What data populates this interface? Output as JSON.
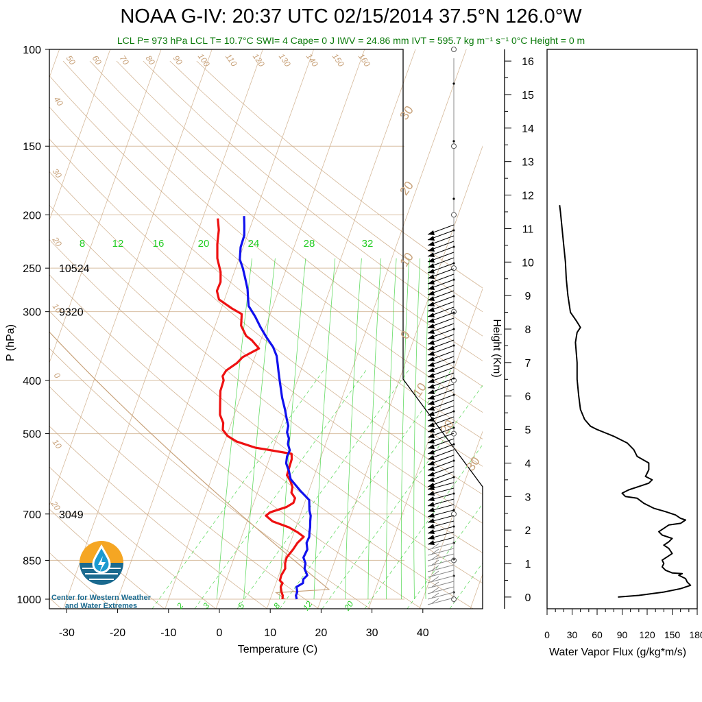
{
  "title": "NOAA G-IV: 20:37 UTC 02/15/2014  37.5°N 126.0°W",
  "subtitle": "LCL P= 973 hPa  LCL T= 10.7°C  SWI= 4  Cape= 0 J  IWV = 24.86 mm  IVT = 595.7 kg m⁻¹ s⁻¹  0°C Height = 0 m",
  "logo": {
    "caption_line1": "Center for Western Weather",
    "caption_line2": "and Water Extremes",
    "icon": "cw3e-water-drop-logo"
  },
  "colors": {
    "temperature": "#ee1111",
    "dewpoint": "#1111ee",
    "mixing_ratio": "#22cc22",
    "adiabats": "#c8a27a",
    "flux": "#000000"
  },
  "chart_data": [
    {
      "type": "line",
      "name": "skew-t-sounding",
      "xlabel": "Temperature (C)",
      "ylabel": "P (hPa)",
      "x_ticks": [
        -30,
        -20,
        -10,
        0,
        10,
        20,
        30,
        40
      ],
      "y_ticks": [
        100,
        150,
        200,
        250,
        300,
        400,
        500,
        700,
        850,
        1000
      ],
      "y_scale": "log",
      "xlim": [
        -34,
        40
      ],
      "ylim": [
        1000,
        100
      ],
      "height_labels": [
        {
          "p": 250,
          "text": "10524"
        },
        {
          "p": 300,
          "text": "9320"
        },
        {
          "p": 700,
          "text": "3049"
        }
      ],
      "mixing_ratio_labels_top": [
        "8",
        "12",
        "16",
        "20",
        "24",
        "28",
        "32"
      ],
      "mixing_ratio_labels_bottom": [
        "2",
        "3",
        "5",
        "8",
        "12",
        "20"
      ],
      "dry_adiabat_labels": [
        "50",
        "60",
        "70",
        "80",
        "90",
        "100",
        "110",
        "120",
        "130",
        "140",
        "150",
        "160"
      ],
      "isotherm_labels_left": [
        "40",
        "30",
        "20",
        "10",
        "0",
        "10",
        "20"
      ],
      "isotherm_labels_right": [
        "30",
        "20",
        "10",
        "0",
        "10",
        "20",
        "30"
      ],
      "series": [
        {
          "name": "Temperature",
          "points": [
            [
              12.4,
              1000
            ],
            [
              12.2,
              985
            ],
            [
              11.7,
              970
            ],
            [
              11.2,
              950
            ],
            [
              11.3,
              935
            ],
            [
              10.6,
              925
            ],
            [
              10.5,
              905
            ],
            [
              10.8,
              880
            ],
            [
              10.4,
              860
            ],
            [
              10.3,
              840
            ],
            [
              11.0,
              812
            ],
            [
              11.4,
              790
            ],
            [
              12.2,
              770
            ],
            [
              10.6,
              755
            ],
            [
              8.6,
              740
            ],
            [
              5.0,
              722
            ],
            [
              3.3,
              705
            ],
            [
              3.9,
              695
            ],
            [
              6.7,
              680
            ],
            [
              7.8,
              668
            ],
            [
              7.8,
              655
            ],
            [
              6.7,
              640
            ],
            [
              6.5,
              625
            ],
            [
              5.7,
              610
            ],
            [
              4.6,
              595
            ],
            [
              4.5,
              575
            ],
            [
              4.4,
              556
            ],
            [
              4.0,
              544
            ],
            [
              -3.6,
              530
            ],
            [
              -7.6,
              517
            ],
            [
              -9.8,
              505
            ],
            [
              -11.2,
              492
            ],
            [
              -11.6,
              478
            ],
            [
              -12.8,
              462
            ],
            [
              -13.6,
              440
            ],
            [
              -14.4,
              418
            ],
            [
              -14.5,
              400
            ],
            [
              -15.0,
              393
            ],
            [
              -14.7,
              384
            ],
            [
              -13.1,
              372
            ],
            [
              -12.4,
              363
            ],
            [
              -9.8,
              350
            ],
            [
              -11.8,
              338
            ],
            [
              -13.2,
              332
            ],
            [
              -14.9,
              318
            ],
            [
              -15.6,
              303
            ],
            [
              -17.9,
              296
            ],
            [
              -21.1,
              285
            ],
            [
              -22.1,
              275
            ],
            [
              -22.0,
              265
            ],
            [
              -22.7,
              254
            ],
            [
              -24.3,
              240
            ],
            [
              -25.3,
              226
            ],
            [
              -26.0,
              213
            ],
            [
              -27.0,
              203
            ]
          ]
        },
        {
          "name": "Dewpoint",
          "points": [
            [
              15.2,
              1000
            ],
            [
              14.8,
              985
            ],
            [
              14.8,
              970
            ],
            [
              14.3,
              950
            ],
            [
              15.3,
              935
            ],
            [
              15.1,
              920
            ],
            [
              15.6,
              905
            ],
            [
              14.6,
              880
            ],
            [
              14.4,
              860
            ],
            [
              13.6,
              840
            ],
            [
              13.8,
              812
            ],
            [
              13.2,
              790
            ],
            [
              13.3,
              770
            ],
            [
              13.0,
              755
            ],
            [
              12.8,
              740
            ],
            [
              12.4,
              722
            ],
            [
              12.1,
              705
            ],
            [
              11.5,
              690
            ],
            [
              11.1,
              675
            ],
            [
              10.7,
              660
            ],
            [
              8.3,
              635
            ],
            [
              5.6,
              605
            ],
            [
              4.7,
              585
            ],
            [
              3.6,
              566
            ],
            [
              3.3,
              550
            ],
            [
              3.4,
              536
            ],
            [
              2.6,
              522
            ],
            [
              2.4,
              510
            ],
            [
              1.6,
              497
            ],
            [
              1.4,
              484
            ],
            [
              0.6,
              470
            ],
            [
              -0.4,
              452
            ],
            [
              -1.8,
              430
            ],
            [
              -2.8,
              412
            ],
            [
              -3.6,
              398
            ],
            [
              -4.3,
              386
            ],
            [
              -5.0,
              374
            ],
            [
              -5.8,
              361
            ],
            [
              -7.1,
              348
            ],
            [
              -9.1,
              334
            ],
            [
              -11.0,
              320
            ],
            [
              -12.8,
              306
            ],
            [
              -14.8,
              293
            ],
            [
              -15.5,
              283
            ],
            [
              -16.2,
              273
            ],
            [
              -17.4,
              261
            ],
            [
              -18.6,
              250
            ],
            [
              -19.8,
              241
            ],
            [
              -20.5,
              229
            ],
            [
              -20.6,
              218
            ],
            [
              -21.3,
              209
            ],
            [
              -22.0,
              201
            ]
          ]
        }
      ]
    },
    {
      "type": "line",
      "name": "water-vapor-flux-profile",
      "xlabel": "Water Vapor Flux (g/kg*m/s)",
      "ylabel": "Height (Km)",
      "x_ticks": [
        0,
        30,
        60,
        90,
        120,
        150,
        180
      ],
      "y_ticks": [
        0,
        1,
        2,
        3,
        4,
        5,
        6,
        7,
        8,
        9,
        10,
        11,
        12,
        13,
        14,
        15,
        16
      ],
      "xlim": [
        0,
        180
      ],
      "ylim": [
        -0.35,
        16.35
      ],
      "series": [
        {
          "name": "Water Vapor Flux",
          "points": [
            [
              85,
              0
            ],
            [
              110,
              0.05
            ],
            [
              140,
              0.15
            ],
            [
              160,
              0.25
            ],
            [
              172,
              0.35
            ],
            [
              168,
              0.45
            ],
            [
              166,
              0.55
            ],
            [
              158,
              0.65
            ],
            [
              162,
              0.7
            ],
            [
              150,
              0.72
            ],
            [
              142,
              0.8
            ],
            [
              138,
              0.9
            ],
            [
              140,
              1.0
            ],
            [
              138,
              1.1
            ],
            [
              144,
              1.2
            ],
            [
              150,
              1.3
            ],
            [
              146,
              1.45
            ],
            [
              140,
              1.55
            ],
            [
              146,
              1.65
            ],
            [
              150,
              1.75
            ],
            [
              138,
              1.85
            ],
            [
              134,
              1.95
            ],
            [
              140,
              2.05
            ],
            [
              146,
              2.15
            ],
            [
              160,
              2.2
            ],
            [
              166,
              2.3
            ],
            [
              160,
              2.35
            ],
            [
              154,
              2.45
            ],
            [
              142,
              2.55
            ],
            [
              128,
              2.65
            ],
            [
              116,
              2.8
            ],
            [
              108,
              2.95
            ],
            [
              94,
              3.0
            ],
            [
              90,
              3.1
            ],
            [
              98,
              3.2
            ],
            [
              110,
              3.3
            ],
            [
              122,
              3.4
            ],
            [
              126,
              3.5
            ],
            [
              118,
              3.6
            ],
            [
              122,
              3.8
            ],
            [
              122,
              4.0
            ],
            [
              108,
              4.2
            ],
            [
              104,
              4.4
            ],
            [
              96,
              4.6
            ],
            [
              80,
              4.8
            ],
            [
              70,
              4.9
            ],
            [
              60,
              5.0
            ],
            [
              52,
              5.1
            ],
            [
              45,
              5.3
            ],
            [
              40,
              5.6
            ],
            [
              38,
              6.0
            ],
            [
              36,
              6.5
            ],
            [
              36,
              7.0
            ],
            [
              35,
              7.3
            ],
            [
              34,
              7.6
            ],
            [
              36,
              7.9
            ],
            [
              40,
              8.05
            ],
            [
              35,
              8.25
            ],
            [
              28,
              8.5
            ],
            [
              25,
              9.0
            ],
            [
              23,
              9.5
            ],
            [
              22,
              10.0
            ],
            [
              20,
              10.5
            ],
            [
              18,
              11.0
            ],
            [
              16,
              11.5
            ],
            [
              15,
              11.7
            ]
          ]
        }
      ]
    }
  ]
}
